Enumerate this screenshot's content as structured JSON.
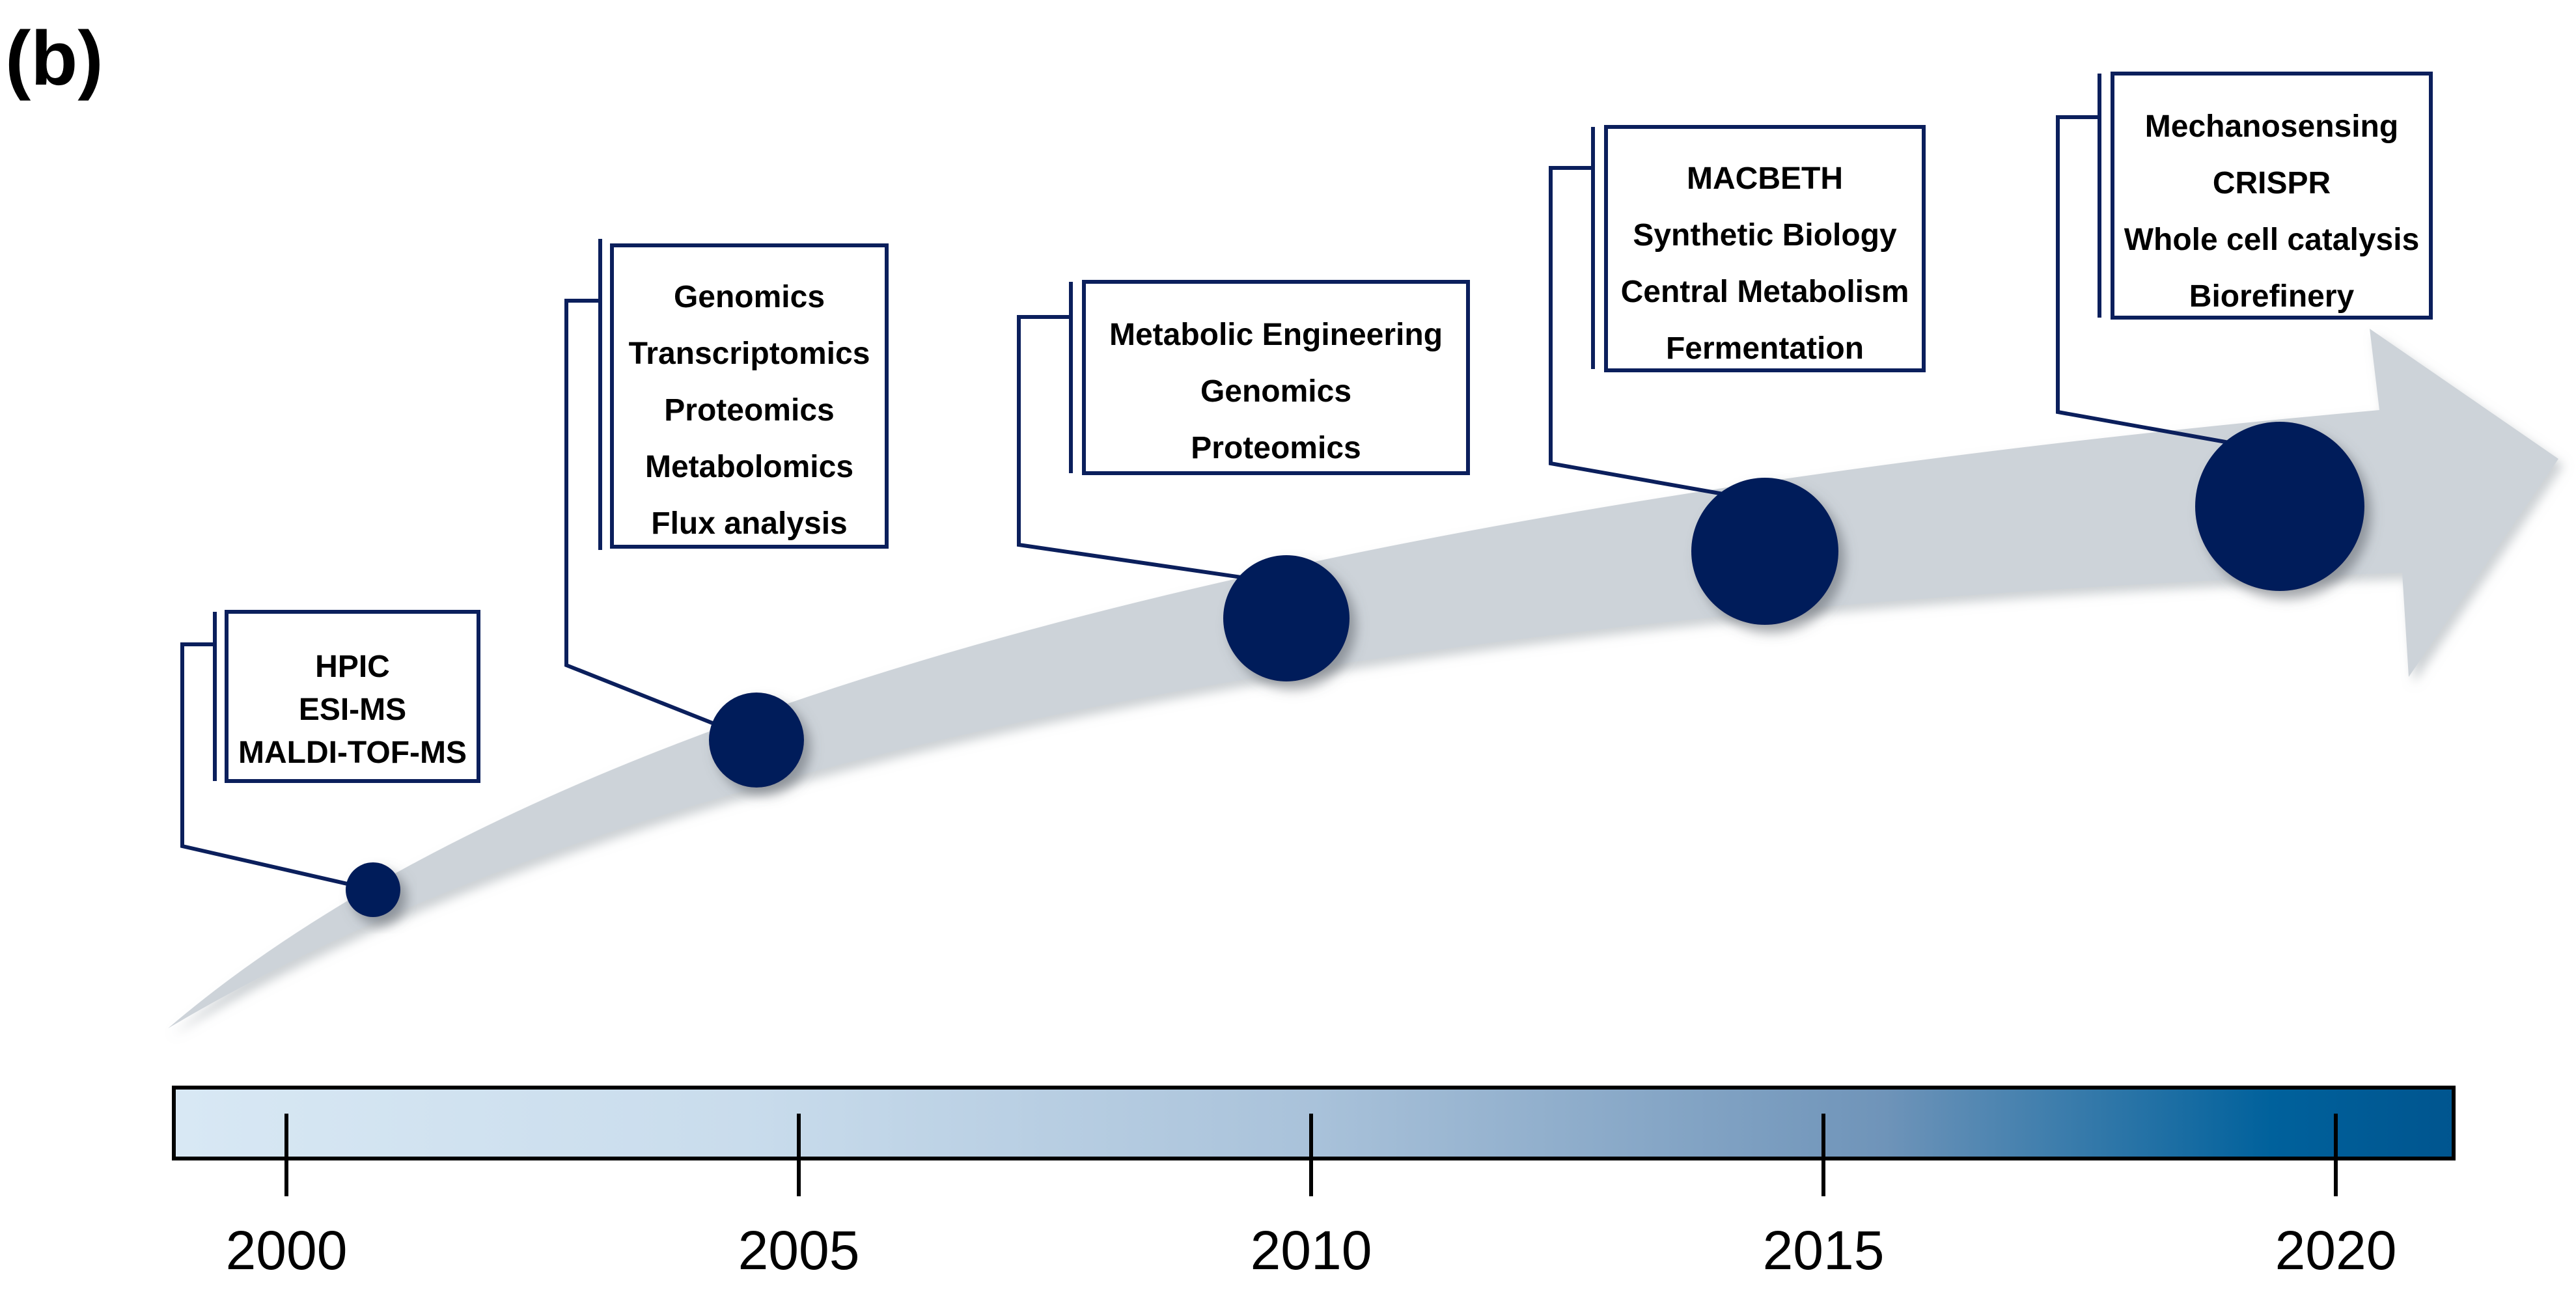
{
  "panel_label": "(b)",
  "colors": {
    "navy": "#0b1f5c",
    "node": "#061c5a",
    "arrow": "#cdd3d9",
    "bar_start": "#d6e6f3",
    "bar_mid": "#94b3cf",
    "bar_end": "#00558f"
  },
  "milestones": [
    {
      "items": [
        "HPIC",
        "ESI-MS",
        "MALDI-TOF-MS"
      ]
    },
    {
      "items": [
        "Genomics",
        "Transcriptomics",
        "Proteomics",
        "Metabolomics",
        "Flux analysis"
      ]
    },
    {
      "items": [
        "Metabolic Engineering",
        "Genomics",
        "Proteomics"
      ]
    },
    {
      "items": [
        "MACBETH",
        "Synthetic Biology",
        "Central Metabolism",
        "Fermentation"
      ]
    },
    {
      "items": [
        "Mechanosensing",
        "CRISPR",
        "Whole cell catalysis",
        "Biorefinery"
      ]
    }
  ],
  "timeline": {
    "years": [
      "2000",
      "2005",
      "2010",
      "2015",
      "2020"
    ]
  }
}
